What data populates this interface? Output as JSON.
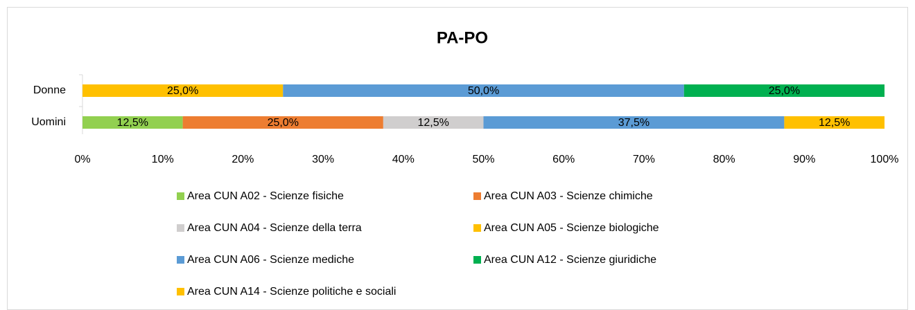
{
  "chart_data": {
    "type": "bar",
    "orientation": "horizontal",
    "stacked": true,
    "title": "PA-PO",
    "categories": [
      "Donne",
      "Uomini"
    ],
    "series": [
      {
        "name": "Area CUN A02 - Scienze fisiche",
        "color": "#92d050",
        "values": [
          null,
          12.5
        ],
        "value_labels": [
          null,
          "12,5%"
        ]
      },
      {
        "name": "Area CUN A03 - Scienze chimiche",
        "color": "#ed7d31",
        "values": [
          null,
          25
        ],
        "value_labels": [
          null,
          "25,0%"
        ]
      },
      {
        "name": "Area CUN A04 - Scienze della terra",
        "color": "#d0cece",
        "values": [
          null,
          12.5
        ],
        "value_labels": [
          null,
          "12,5%"
        ]
      },
      {
        "name": "Area CUN A05 - Scienze biologiche",
        "color": "#ffc000",
        "values": [
          25,
          null
        ],
        "value_labels": [
          "25,0%",
          null
        ]
      },
      {
        "name": "Area CUN A06 - Scienze mediche",
        "color": "#5b9bd5",
        "values": [
          50,
          37.5
        ],
        "value_labels": [
          "50,0%",
          "37,5%"
        ]
      },
      {
        "name": "Area CUN A12 - Scienze giuridiche",
        "color": "#00b050",
        "values": [
          25,
          null
        ],
        "value_labels": [
          "25,0%",
          null
        ]
      },
      {
        "name": "Area CUN A14 - Scienze politiche e sociali",
        "color": "#ffc000",
        "values": [
          null,
          12.5
        ],
        "value_labels": [
          null,
          "12,5%"
        ]
      }
    ],
    "xlim": [
      0,
      100
    ],
    "xticks": [
      {
        "value": 0,
        "label": "0%"
      },
      {
        "value": 10,
        "label": "10%"
      },
      {
        "value": 20,
        "label": "20%"
      },
      {
        "value": 30,
        "label": "30%"
      },
      {
        "value": 40,
        "label": "40%"
      },
      {
        "value": 50,
        "label": "50%"
      },
      {
        "value": 60,
        "label": "60%"
      },
      {
        "value": 70,
        "label": "70%"
      },
      {
        "value": 80,
        "label": "80%"
      },
      {
        "value": 90,
        "label": "90%"
      },
      {
        "value": 100,
        "label": "100%"
      }
    ],
    "grid": false,
    "legend": "bottom"
  }
}
